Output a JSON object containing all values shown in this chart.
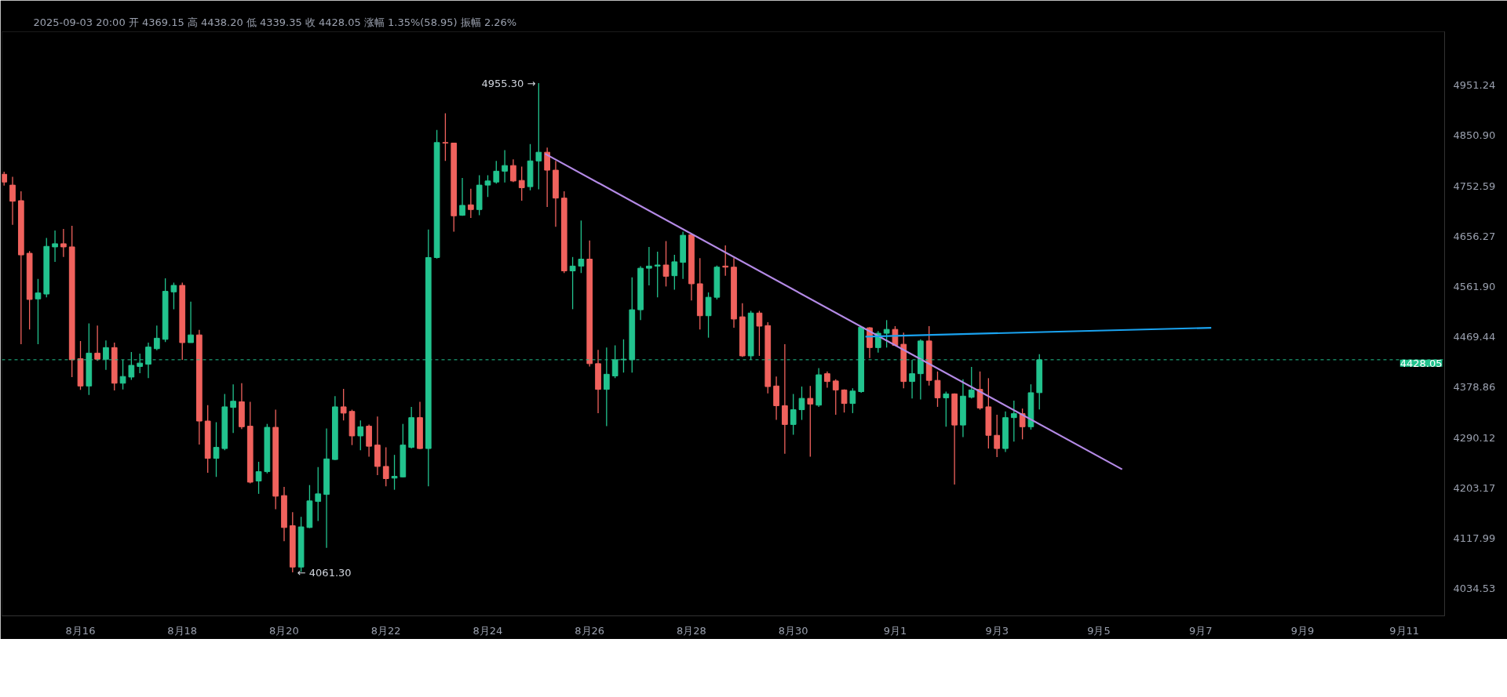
{
  "chart_data": {
    "type": "candlestick",
    "title": "2025-09-03 20:00 开 4369.15 高 4438.20 低 4339.35 收 4428.05 涨幅 1.35%(58.95) 振幅 2.26%",
    "x": [
      "2025-08-14T12:00",
      "2025-08-14T16:00",
      "2025-08-14T20:00",
      "2025-08-15T00:00",
      "2025-08-15T04:00",
      "2025-08-15T08:00",
      "2025-08-15T12:00",
      "2025-08-15T16:00",
      "2025-08-15T20:00",
      "2025-08-16T00:00",
      "2025-08-16T04:00",
      "2025-08-16T08:00",
      "2025-08-16T12:00",
      "2025-08-16T16:00",
      "2025-08-16T20:00",
      "2025-08-17T00:00",
      "2025-08-17T04:00",
      "2025-08-17T08:00",
      "2025-08-17T12:00",
      "2025-08-17T16:00",
      "2025-08-17T20:00",
      "2025-08-18T00:00",
      "2025-08-18T04:00",
      "2025-08-18T08:00",
      "2025-08-18T12:00",
      "2025-08-18T16:00",
      "2025-08-18T20:00",
      "2025-08-19T00:00",
      "2025-08-19T04:00",
      "2025-08-19T08:00",
      "2025-08-19T12:00",
      "2025-08-19T16:00",
      "2025-08-19T20:00",
      "2025-08-20T00:00",
      "2025-08-20T04:00",
      "2025-08-20T08:00",
      "2025-08-20T12:00",
      "2025-08-20T16:00",
      "2025-08-20T20:00",
      "2025-08-21T00:00",
      "2025-08-21T04:00",
      "2025-08-21T08:00",
      "2025-08-21T12:00",
      "2025-08-21T16:00",
      "2025-08-21T20:00",
      "2025-08-22T00:00",
      "2025-08-22T04:00",
      "2025-08-22T08:00",
      "2025-08-22T12:00",
      "2025-08-22T16:00",
      "2025-08-22T20:00",
      "2025-08-23T00:00",
      "2025-08-23T04:00",
      "2025-08-23T08:00",
      "2025-08-23T12:00",
      "2025-08-23T16:00",
      "2025-08-23T20:00",
      "2025-08-24T00:00",
      "2025-08-24T04:00",
      "2025-08-24T08:00",
      "2025-08-24T12:00",
      "2025-08-24T16:00",
      "2025-08-24T20:00",
      "2025-08-25T00:00",
      "2025-08-25T04:00",
      "2025-08-25T08:00",
      "2025-08-25T12:00",
      "2025-08-25T16:00",
      "2025-08-25T20:00",
      "2025-08-26T00:00",
      "2025-08-26T04:00",
      "2025-08-26T08:00",
      "2025-08-26T12:00",
      "2025-08-26T16:00",
      "2025-08-26T20:00",
      "2025-08-27T00:00",
      "2025-08-27T04:00",
      "2025-08-27T08:00",
      "2025-08-27T12:00",
      "2025-08-27T16:00",
      "2025-08-27T20:00",
      "2025-08-28T00:00",
      "2025-08-28T04:00",
      "2025-08-28T08:00",
      "2025-08-28T12:00",
      "2025-08-28T16:00",
      "2025-08-28T20:00",
      "2025-08-29T00:00",
      "2025-08-29T04:00",
      "2025-08-29T08:00",
      "2025-08-29T12:00",
      "2025-08-29T16:00",
      "2025-08-29T20:00",
      "2025-08-30T00:00",
      "2025-08-30T04:00",
      "2025-08-30T08:00",
      "2025-08-30T12:00",
      "2025-08-30T16:00",
      "2025-08-30T20:00",
      "2025-08-31T00:00",
      "2025-08-31T04:00",
      "2025-08-31T08:00",
      "2025-08-31T12:00",
      "2025-08-31T16:00",
      "2025-08-31T20:00",
      "2025-09-01T00:00",
      "2025-09-01T04:00",
      "2025-09-01T08:00",
      "2025-09-01T12:00",
      "2025-09-01T16:00",
      "2025-09-01T20:00",
      "2025-09-02T00:00",
      "2025-09-02T04:00",
      "2025-09-02T08:00",
      "2025-09-02T12:00",
      "2025-09-02T16:00",
      "2025-09-02T20:00",
      "2025-09-03T00:00",
      "2025-09-03T04:00",
      "2025-09-03T08:00",
      "2025-09-03T12:00",
      "2025-09-03T16:00",
      "2025-09-03T20:00"
    ],
    "ohlc": [
      [
        4775,
        4780,
        4753,
        4760
      ],
      [
        4754,
        4770,
        4678,
        4723
      ],
      [
        4724,
        4742,
        4456,
        4621
      ],
      [
        4624,
        4628,
        4483,
        4538
      ],
      [
        4539,
        4576,
        4456,
        4550
      ],
      [
        4548,
        4653,
        4542,
        4637
      ],
      [
        4636,
        4667,
        4608,
        4642
      ],
      [
        4642,
        4670,
        4617,
        4636
      ],
      [
        4636,
        4676,
        4397,
        4428
      ],
      [
        4430,
        4462,
        4374,
        4381
      ],
      [
        4381,
        4494,
        4365,
        4440
      ],
      [
        4440,
        4490,
        4426,
        4429
      ],
      [
        4429,
        4463,
        4410,
        4450
      ],
      [
        4450,
        4459,
        4373,
        4386
      ],
      [
        4386,
        4428,
        4375,
        4398
      ],
      [
        4397,
        4442,
        4392,
        4418
      ],
      [
        4416,
        4439,
        4404,
        4422
      ],
      [
        4420,
        4459,
        4395,
        4451
      ],
      [
        4448,
        4490,
        4445,
        4467
      ],
      [
        4465,
        4577,
        4460,
        4553
      ],
      [
        4552,
        4569,
        4520,
        4564
      ],
      [
        4564,
        4569,
        4428,
        4459
      ],
      [
        4459,
        4534,
        4459,
        4473
      ],
      [
        4473,
        4482,
        4278,
        4319
      ],
      [
        4319,
        4347,
        4229,
        4254
      ],
      [
        4254,
        4317,
        4222,
        4273
      ],
      [
        4271,
        4367,
        4268,
        4344
      ],
      [
        4343,
        4384,
        4298,
        4354
      ],
      [
        4353,
        4386,
        4305,
        4309
      ],
      [
        4310,
        4353,
        4211,
        4213
      ],
      [
        4215,
        4248,
        4193,
        4231
      ],
      [
        4231,
        4314,
        4228,
        4308
      ],
      [
        4308,
        4339,
        4167,
        4189
      ],
      [
        4190,
        4205,
        4113,
        4136
      ],
      [
        4139,
        4162,
        4061.3,
        4070
      ],
      [
        4070,
        4154,
        4062,
        4137
      ],
      [
        4136,
        4208,
        4135,
        4181
      ],
      [
        4180,
        4239,
        4147,
        4193
      ],
      [
        4192,
        4306,
        4102,
        4253
      ],
      [
        4252,
        4363,
        4251,
        4344
      ],
      [
        4344,
        4376,
        4320,
        4333
      ],
      [
        4336,
        4339,
        4277,
        4293
      ],
      [
        4293,
        4320,
        4268,
        4309
      ],
      [
        4310,
        4313,
        4257,
        4275
      ],
      [
        4277,
        4327,
        4225,
        4240
      ],
      [
        4240,
        4273,
        4206,
        4219
      ],
      [
        4220,
        4260,
        4200,
        4223
      ],
      [
        4222,
        4314,
        4221,
        4277
      ],
      [
        4273,
        4344,
        4271,
        4325
      ],
      [
        4325,
        4353,
        4270,
        4271
      ],
      [
        4271,
        4669,
        4206,
        4616
      ],
      [
        4616,
        4862,
        4614,
        4837
      ],
      [
        4837,
        4895,
        4801,
        4836
      ],
      [
        4836,
        4836,
        4665,
        4695
      ],
      [
        4696,
        4768,
        4695,
        4715
      ],
      [
        4716,
        4747,
        4691,
        4707
      ],
      [
        4707,
        4773,
        4696,
        4754
      ],
      [
        4754,
        4773,
        4731,
        4762
      ],
      [
        4760,
        4801,
        4757,
        4781
      ],
      [
        4781,
        4822,
        4759,
        4792
      ],
      [
        4792,
        4804,
        4760,
        4762
      ],
      [
        4763,
        4790,
        4724,
        4749
      ],
      [
        4751,
        4834,
        4744,
        4801
      ],
      [
        4801,
        4955.3,
        4746,
        4818
      ],
      [
        4818,
        4827,
        4712,
        4783
      ],
      [
        4783,
        4801,
        4674,
        4729
      ],
      [
        4729,
        4742,
        4587,
        4591
      ],
      [
        4591,
        4617,
        4520,
        4600
      ],
      [
        4600,
        4686,
        4587,
        4613
      ],
      [
        4613,
        4648,
        4416,
        4421
      ],
      [
        4421,
        4446,
        4333,
        4375
      ],
      [
        4375,
        4450,
        4310,
        4402
      ],
      [
        4399,
        4454,
        4395,
        4428
      ],
      [
        4428,
        4465,
        4405,
        4429
      ],
      [
        4428,
        4579,
        4405,
        4519
      ],
      [
        4519,
        4600,
        4500,
        4596
      ],
      [
        4596,
        4636,
        4564,
        4600
      ],
      [
        4600,
        4627,
        4542,
        4602
      ],
      [
        4602,
        4647,
        4562,
        4581
      ],
      [
        4582,
        4621,
        4556,
        4608
      ],
      [
        4607,
        4665,
        4576,
        4658
      ],
      [
        4659,
        4659,
        4536,
        4567
      ],
      [
        4567,
        4615,
        4483,
        4508
      ],
      [
        4508,
        4551,
        4468,
        4542
      ],
      [
        4542,
        4601,
        4538,
        4598
      ],
      [
        4600,
        4639,
        4582,
        4598
      ],
      [
        4598,
        4615,
        4486,
        4502
      ],
      [
        4506,
        4531,
        4433,
        4435
      ],
      [
        4435,
        4517,
        4428,
        4513
      ],
      [
        4513,
        4517,
        4435,
        4489
      ],
      [
        4490,
        4496,
        4368,
        4380
      ],
      [
        4381,
        4398,
        4321,
        4346
      ],
      [
        4346,
        4456,
        4262,
        4313
      ],
      [
        4313,
        4367,
        4295,
        4339
      ],
      [
        4339,
        4380,
        4321,
        4359
      ],
      [
        4359,
        4381,
        4257,
        4349
      ],
      [
        4347,
        4413,
        4344,
        4401
      ],
      [
        4403,
        4407,
        4378,
        4389
      ],
      [
        4390,
        4393,
        4330,
        4374
      ],
      [
        4374,
        4375,
        4334,
        4350
      ],
      [
        4350,
        4377,
        4333,
        4372
      ],
      [
        4371,
        4489,
        4369,
        4487
      ],
      [
        4486,
        4487,
        4431,
        4450
      ],
      [
        4450,
        4480,
        4441,
        4476
      ],
      [
        4476,
        4500,
        4450,
        4483
      ],
      [
        4483,
        4489,
        4453,
        4454
      ],
      [
        4456,
        4477,
        4377,
        4389
      ],
      [
        4389,
        4428,
        4359,
        4403
      ],
      [
        4403,
        4465,
        4357,
        4462
      ],
      [
        4462,
        4489,
        4382,
        4391
      ],
      [
        4391,
        4407,
        4344,
        4360
      ],
      [
        4360,
        4371,
        4309,
        4367
      ],
      [
        4367,
        4368,
        4209,
        4312
      ],
      [
        4312,
        4393,
        4291,
        4363
      ],
      [
        4361,
        4415,
        4359,
        4374
      ],
      [
        4375,
        4407,
        4339,
        4342
      ],
      [
        4344,
        4395,
        4271,
        4294
      ],
      [
        4294,
        4330,
        4256,
        4271
      ],
      [
        4271,
        4336,
        4265,
        4325
      ],
      [
        4325,
        4355,
        4283,
        4332
      ],
      [
        4332,
        4341,
        4287,
        4309
      ],
      [
        4309,
        4384,
        4304,
        4369
      ],
      [
        4369.15,
        4438.2,
        4339.35,
        4428.05
      ]
    ],
    "colors": [
      "#f0625d",
      "#f0625d",
      "#f0625d",
      "#f0625d",
      "#22c38e",
      "#22c38e",
      "#22c38e",
      "#f0625d",
      "#f0625d",
      "#f0625d",
      "#22c38e",
      "#f0625d",
      "#22c38e",
      "#f0625d",
      "#22c38e",
      "#22c38e",
      "#22c38e",
      "#22c38e",
      "#22c38e",
      "#22c38e",
      "#22c38e",
      "#f0625d",
      "#22c38e",
      "#f0625d",
      "#f0625d",
      "#22c38e",
      "#22c38e",
      "#22c38e",
      "#f0625d",
      "#f0625d",
      "#22c38e",
      "#22c38e",
      "#f0625d",
      "#f0625d",
      "#f0625d",
      "#22c38e",
      "#22c38e",
      "#22c38e",
      "#22c38e",
      "#22c38e",
      "#f0625d",
      "#f0625d",
      "#22c38e",
      "#f0625d",
      "#f0625d",
      "#f0625d",
      "#22c38e",
      "#22c38e",
      "#22c38e",
      "#f0625d",
      "#22c38e",
      "#22c38e",
      "#f0625d",
      "#f0625d",
      "#22c38e",
      "#f0625d",
      "#22c38e",
      "#22c38e",
      "#22c38e",
      "#22c38e",
      "#f0625d",
      "#f0625d",
      "#22c38e",
      "#22c38e",
      "#f0625d",
      "#f0625d",
      "#f0625d",
      "#22c38e",
      "#22c38e",
      "#f0625d",
      "#f0625d",
      "#22c38e",
      "#22c38e",
      "#22c38e",
      "#22c38e",
      "#22c38e",
      "#22c38e",
      "#22c38e",
      "#f0625d",
      "#22c38e",
      "#22c38e",
      "#f0625d",
      "#f0625d",
      "#22c38e",
      "#22c38e",
      "#f0625d",
      "#f0625d",
      "#f0625d",
      "#22c38e",
      "#f0625d",
      "#f0625d",
      "#f0625d",
      "#f0625d",
      "#22c38e",
      "#22c38e",
      "#f0625d",
      "#22c38e",
      "#f0625d",
      "#f0625d",
      "#f0625d",
      "#22c38e",
      "#22c38e",
      "#f0625d",
      "#22c38e",
      "#22c38e",
      "#f0625d",
      "#f0625d",
      "#22c38e",
      "#22c38e",
      "#f0625d",
      "#f0625d",
      "#22c38e",
      "#f0625d",
      "#22c38e",
      "#22c38e",
      "#f0625d",
      "#f0625d",
      "#f0625d",
      "#22c38e",
      "#22c38e",
      "#f0625d",
      "#22c38e",
      "#22c38e"
    ],
    "series": [
      {
        "type": "line",
        "color": "#b48ae6",
        "x": [
          "2025-08-25T03:00",
          "2025-09-05T11:00"
        ],
        "values": [
          4815,
          4235
        ]
      },
      {
        "type": "line",
        "color": "#1aa3f0",
        "x": [
          "2025-08-31T10:00",
          "2025-09-07T05:00"
        ],
        "values": [
          4470,
          4486
        ]
      }
    ],
    "xlim": [
      "2025-08-14T11:00",
      "2025-09-11T19:00"
    ],
    "xticks": [
      {
        "value": "2025-08-16",
        "label": "8月16"
      },
      {
        "value": "2025-08-18",
        "label": "8月18"
      },
      {
        "value": "2025-08-20",
        "label": "8月20"
      },
      {
        "value": "2025-08-22",
        "label": "8月22"
      },
      {
        "value": "2025-08-24",
        "label": "8月24"
      },
      {
        "value": "2025-08-26",
        "label": "8月26"
      },
      {
        "value": "2025-08-28",
        "label": "8月28"
      },
      {
        "value": "2025-08-30",
        "label": "8月30"
      },
      {
        "value": "2025-09-01",
        "label": "9月1"
      },
      {
        "value": "2025-09-03",
        "label": "9月3"
      },
      {
        "value": "2025-09-05",
        "label": "9月5"
      },
      {
        "value": "2025-09-07",
        "label": "9月7"
      },
      {
        "value": "2025-09-09",
        "label": "9月9"
      },
      {
        "value": "2025-09-11",
        "label": "9月11"
      }
    ],
    "ylim": [
      3990,
      5060
    ],
    "yticks": [
      4951.24,
      {
        "value": 4850.9,
        "label": "4850.90"
      },
      4752.59,
      4656.27,
      {
        "value": 4561.9,
        "label": "4561.90"
      },
      4469.44,
      4378.86,
      4290.12,
      4203.17,
      4117.99,
      4034.53
    ],
    "log": true,
    "grid": false,
    "ref_lines": [
      {
        "axis": "y",
        "value": 4428.05,
        "label": "4428.05",
        "color": "#22c38e",
        "line_style": "dashed"
      }
    ],
    "annotations": [
      {
        "text": "4955.30 →",
        "x": "2025-08-25T00:00",
        "y": 4955.3
      },
      {
        "text": "← 4061.30",
        "x": "2025-08-20T04:00",
        "y": 4061.3
      }
    ]
  }
}
